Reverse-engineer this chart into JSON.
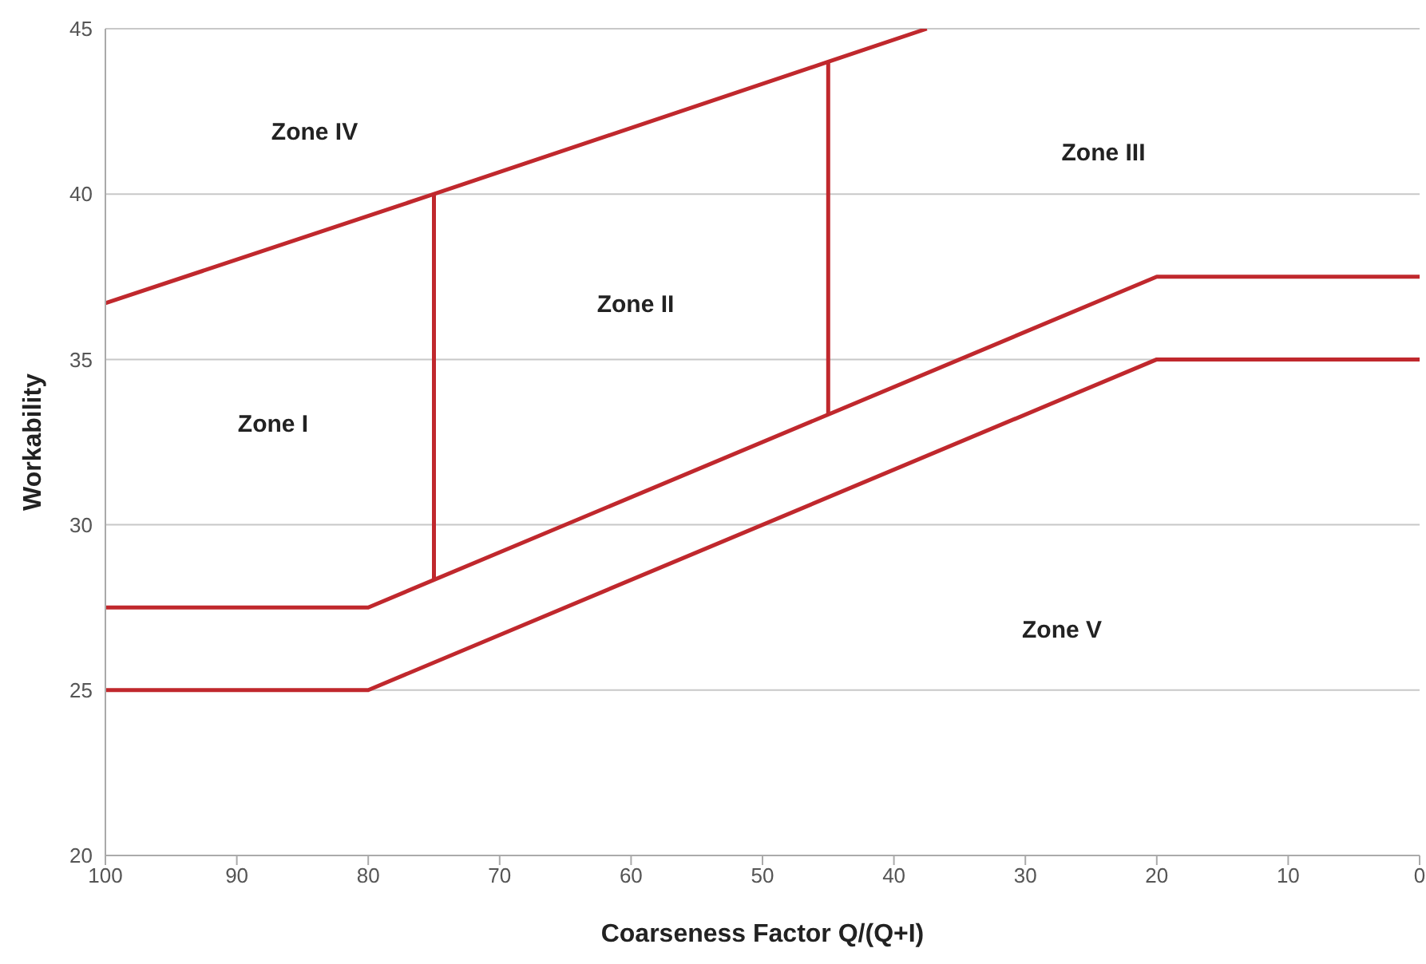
{
  "chart_data": {
    "type": "line",
    "xlabel": "Coarseness Factor Q/(Q+I)",
    "ylabel": "Workability",
    "xlim": [
      100,
      0
    ],
    "xticks": [
      100,
      90,
      80,
      70,
      60,
      50,
      40,
      30,
      20,
      10,
      0
    ],
    "ylim": [
      20,
      45
    ],
    "yticks": [
      20,
      25,
      30,
      35,
      40,
      45
    ],
    "grid": "y",
    "legend": false,
    "marker": "none",
    "line_style": "solid",
    "series": [
      {
        "color": "#c0282d",
        "x": [
          100,
          75,
          45,
          37.5
        ],
        "values": [
          36.7,
          40,
          44,
          45
        ]
      },
      {
        "color": "#c0282d",
        "x": [
          100,
          80,
          20,
          0
        ],
        "values": [
          27.5,
          27.5,
          37.5,
          37.5
        ]
      },
      {
        "color": "#c0282d",
        "x": [
          100,
          80,
          20,
          0
        ],
        "values": [
          25,
          25,
          35,
          35
        ]
      },
      {
        "color": "#c0282d",
        "x": [
          75,
          75
        ],
        "values": [
          28.3,
          40
        ]
      },
      {
        "color": "#c0282d",
        "x": [
          45,
          45
        ],
        "values": [
          33.3,
          44
        ]
      }
    ],
    "annotations": [
      "Zone IV",
      "Zone III",
      "Zone II",
      "Zone I",
      "Zone V"
    ]
  }
}
